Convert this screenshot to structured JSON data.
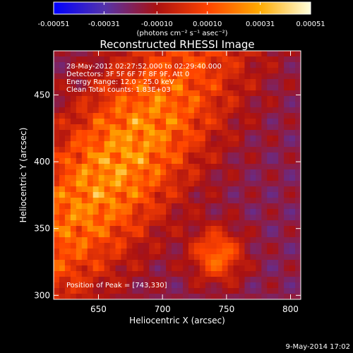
{
  "chart_data": {
    "type": "heatmap",
    "title": "Reconstructed RHESSI Image",
    "xlabel": "Heliocentric X (arcsec)",
    "ylabel": "Heliocentric Y (arcsec)",
    "xlim": [
      615,
      808
    ],
    "ylim": [
      297,
      483
    ],
    "x_ticks": [
      650,
      700,
      750,
      800
    ],
    "y_ticks": [
      300,
      350,
      400,
      450
    ],
    "colorbar": {
      "range": [
        -0.00051,
        0.00051
      ],
      "tick_values": [
        -0.00051,
        -0.00031,
        -0.0001,
        0.0001,
        0.00031,
        0.00051
      ],
      "tick_labels": [
        "-0.00051",
        "-0.00031",
        "-0.00010",
        "0.00010",
        "0.00031",
        "0.00051"
      ],
      "unit_label": "(photons cm⁻² s⁻¹ asec⁻²)",
      "colormap_hex": [
        "#0000ff",
        "#5533aa",
        "#aa1111",
        "#ff4400",
        "#ffaa00",
        "#ffffdd"
      ]
    },
    "annotations": [
      "28-May-2012 02:27:52.000 to 02:29:40.000",
      "Detectors: 3F 5F 6F 7F 8F 9F, Att 0",
      "Energy Range: 12.0 - 25.0 keV",
      "Clean    Total counts: 1.83E+03",
      "Position of Peak = [743,330]"
    ],
    "peak_position": [
      743,
      330
    ],
    "timestamp": "9-May-2014 17:02"
  }
}
